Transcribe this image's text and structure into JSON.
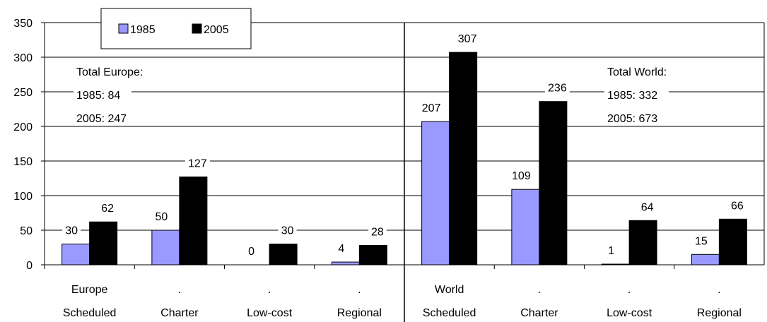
{
  "chart_data": {
    "type": "bar",
    "categories_line1": [
      "Europe",
      ".",
      ".",
      ".",
      "World",
      ".",
      ".",
      "."
    ],
    "categories_line2": [
      "Scheduled",
      "Charter",
      "Low-cost",
      "Regional",
      "Scheduled",
      "Charter",
      "Low-cost",
      "Regional"
    ],
    "series": [
      {
        "name": "1985",
        "color": "#9999ff",
        "values": [
          30,
          50,
          0,
          4,
          207,
          109,
          1,
          15
        ]
      },
      {
        "name": "2005",
        "color": "#000000",
        "values": [
          62,
          127,
          30,
          28,
          307,
          236,
          64,
          66
        ]
      }
    ],
    "ylim": [
      0,
      350
    ],
    "yticks": [
      0,
      50,
      100,
      150,
      200,
      250,
      300,
      350
    ],
    "grid": true,
    "legend": "top-left",
    "annotations": {
      "europe": [
        "Total Europe:",
        "1985: 84",
        "2005: 247"
      ],
      "world": [
        "Total World:",
        "1985: 332",
        "2005: 673"
      ]
    }
  }
}
